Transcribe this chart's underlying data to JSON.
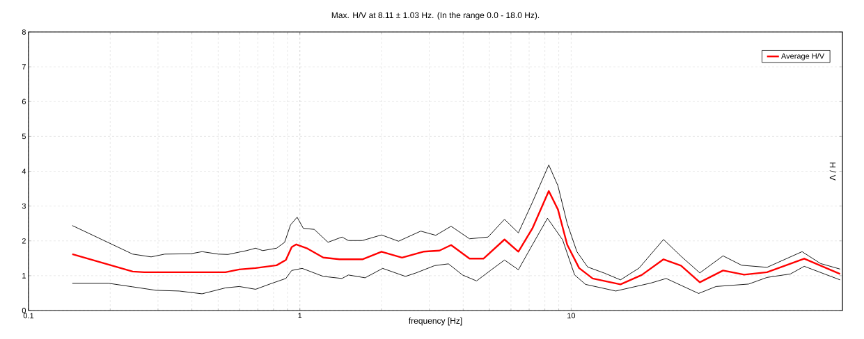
{
  "chart_data": {
    "type": "line",
    "title": "Max. H/V at 8.11 ± 1.03 Hz. (In the range 0.0 - 18.0 Hz).",
    "xlabel": "frequency [Hz]",
    "ylabel": "H / V",
    "log": "x",
    "grid": true,
    "legend": "top right",
    "marker": "none",
    "line_style": "solid",
    "xlim": [
      0.1,
      100
    ],
    "ylim": [
      0,
      8
    ],
    "xticks": [
      0.1,
      1,
      10
    ],
    "yticks": [
      0,
      1,
      2,
      3,
      4,
      5,
      6,
      7,
      8
    ],
    "series": [
      {
        "name": "Average H/V",
        "color": "#ff0000",
        "x": [
          0.145,
          0.242,
          0.267,
          0.532,
          0.598,
          0.687,
          0.821,
          0.888,
          0.933,
          0.97,
          1.06,
          1.22,
          1.4,
          1.7,
          2.0,
          2.38,
          2.85,
          3.27,
          3.61,
          4.22,
          4.75,
          5.68,
          6.39,
          7.2,
          8.27,
          8.94,
          9.67,
          10.7,
          12.0,
          15.2,
          18.2,
          21.9,
          25.4,
          29.8,
          36.3,
          43.4,
          52.7,
          72.3,
          98
        ],
        "values": [
          1.62,
          1.12,
          1.1,
          1.1,
          1.18,
          1.22,
          1.3,
          1.45,
          1.82,
          1.9,
          1.79,
          1.52,
          1.47,
          1.47,
          1.69,
          1.52,
          1.69,
          1.72,
          1.88,
          1.49,
          1.49,
          2.04,
          1.69,
          2.36,
          3.43,
          2.9,
          1.89,
          1.22,
          0.92,
          0.75,
          1.02,
          1.47,
          1.29,
          0.81,
          1.15,
          1.03,
          1.1,
          1.49,
          1.05
        ]
      },
      {
        "color": "#000000",
        "x": [
          0.145,
          0.242,
          0.283,
          0.318,
          0.396,
          0.436,
          0.501,
          0.543,
          0.636,
          0.687,
          0.73,
          0.821,
          0.879,
          0.924,
          0.977,
          1.03,
          1.13,
          1.27,
          1.43,
          1.51,
          1.7,
          2.0,
          2.31,
          2.79,
          3.17,
          3.61,
          4.22,
          4.94,
          5.68,
          6.39,
          7.2,
          8.27,
          8.94,
          9.67,
          10.5,
          11.5,
          13.3,
          15.2,
          17.8,
          21.9,
          25.4,
          29.8,
          36.3,
          42.5,
          52.7,
          71.0,
          83.0,
          98
        ],
        "values": [
          2.44,
          1.62,
          1.54,
          1.62,
          1.63,
          1.69,
          1.62,
          1.61,
          1.72,
          1.79,
          1.72,
          1.79,
          1.96,
          2.46,
          2.68,
          2.36,
          2.33,
          1.96,
          2.11,
          2.01,
          2.01,
          2.17,
          1.99,
          2.28,
          2.16,
          2.42,
          2.06,
          2.11,
          2.62,
          2.23,
          3.11,
          4.18,
          3.58,
          2.5,
          1.69,
          1.25,
          1.07,
          0.88,
          1.22,
          2.04,
          1.56,
          1.08,
          1.57,
          1.3,
          1.24,
          1.69,
          1.35,
          1.19
        ]
      },
      {
        "color": "#000000",
        "x": [
          0.145,
          0.198,
          0.242,
          0.295,
          0.359,
          0.436,
          0.532,
          0.598,
          0.687,
          0.788,
          0.888,
          0.933,
          1.02,
          1.22,
          1.43,
          1.51,
          1.74,
          2.02,
          2.45,
          2.68,
          3.14,
          3.53,
          3.98,
          4.48,
          5.04,
          5.68,
          6.39,
          7.2,
          8.18,
          9.3,
          10.3,
          11.3,
          14.6,
          19.7,
          22.4,
          29.5,
          34.2,
          45.1,
          52.7,
          64.3,
          72.3,
          98
        ],
        "values": [
          0.78,
          0.78,
          0.68,
          0.58,
          0.56,
          0.48,
          0.65,
          0.69,
          0.61,
          0.78,
          0.92,
          1.15,
          1.21,
          0.98,
          0.92,
          1.02,
          0.94,
          1.21,
          0.98,
          1.08,
          1.29,
          1.34,
          1.02,
          0.85,
          1.15,
          1.45,
          1.17,
          1.89,
          2.65,
          2.03,
          1.02,
          0.75,
          0.56,
          0.79,
          0.92,
          0.49,
          0.69,
          0.76,
          0.95,
          1.05,
          1.27,
          0.88
        ]
      }
    ]
  }
}
